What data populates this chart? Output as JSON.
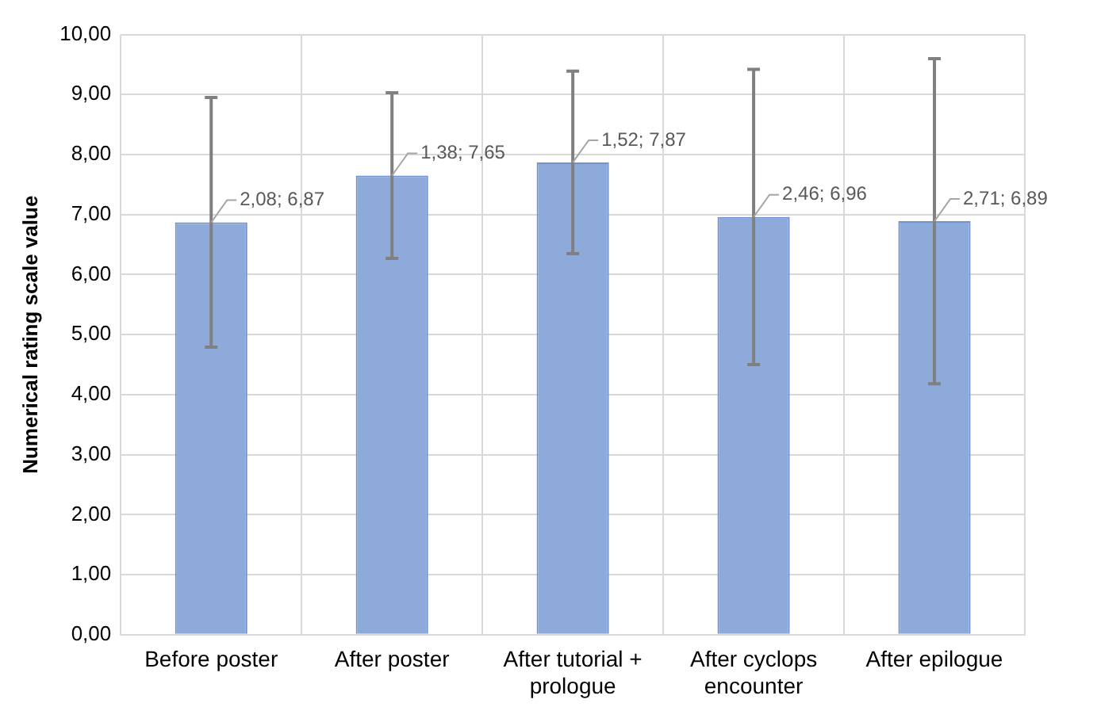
{
  "chart_data": {
    "type": "bar",
    "ylabel": "Numerical rating scale value",
    "categories": [
      "Before poster",
      "After poster",
      "After tutorial + prologue",
      "After cyclops encounter",
      "After epilogue"
    ],
    "values": [
      6.87,
      7.65,
      7.87,
      6.96,
      6.89
    ],
    "errors": [
      2.08,
      1.38,
      1.52,
      2.46,
      2.71
    ],
    "value_labels": [
      "2,08; 6,87",
      "1,38; 7,65",
      "1,52; 7,87",
      "2,46; 6,96",
      "2,71; 6,89"
    ],
    "color": "#8eaadb",
    "ylim": [
      0,
      10
    ],
    "yticks": [
      {
        "value": 0,
        "label": "0,00"
      },
      {
        "value": 1,
        "label": "1,00"
      },
      {
        "value": 2,
        "label": "2,00"
      },
      {
        "value": 3,
        "label": "3,00"
      },
      {
        "value": 4,
        "label": "4,00"
      },
      {
        "value": 5,
        "label": "5,00"
      },
      {
        "value": 6,
        "label": "6,00"
      },
      {
        "value": 7,
        "label": "7,00"
      },
      {
        "value": 8,
        "label": "8,00"
      },
      {
        "value": 9,
        "label": "9,00"
      },
      {
        "value": 10,
        "label": "10,00"
      }
    ],
    "grid": true
  }
}
